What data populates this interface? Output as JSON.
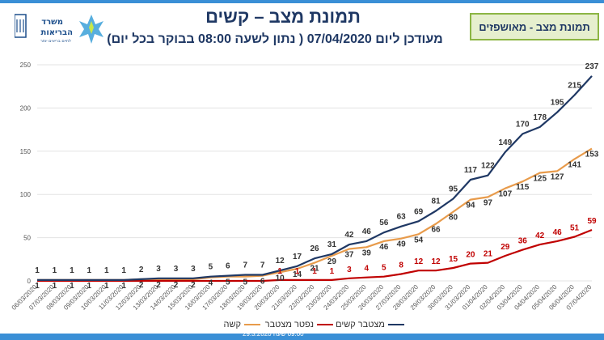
{
  "header": {
    "logo_line1": "משרד",
    "logo_line2": "הבריאות",
    "logo_tagline": "לחיים בריאים יותר",
    "title": "תמונת מצב – קשים",
    "subtitle": "מעודכן ליום 07/04/2020 ( נתון לשעה 08:00 בבוקר בכל יום)",
    "badge": "תמונת מצב - מאושפזים"
  },
  "footer": {
    "text": "09:00 שעה  29.3.2020"
  },
  "colors": {
    "cumulative_severe": "#1f3864",
    "severe": "#e89b4b",
    "cumulative_deceased": "#c00000",
    "accent_green": "#8cb544",
    "accent_blue": "#3a8fd6"
  },
  "chart_data": {
    "type": "line",
    "categories": [
      "06/03/2020",
      "07/03/2020",
      "08/03/2020",
      "09/03/2020",
      "10/03/2020",
      "11/03/2020",
      "12/03/2020",
      "13/03/2020",
      "14/03/2020",
      "15/03/2020",
      "16/03/2020",
      "17/03/2020",
      "18/03/2020",
      "19/03/2020",
      "20/03/2020",
      "21/03/2020",
      "22/03/2020",
      "23/03/2020",
      "24/03/2020",
      "25/03/2020",
      "26/03/2020",
      "27/03/2020",
      "28/03/2020",
      "29/03/2020",
      "30/03/2020",
      "31/03/2020",
      "01/04/2020",
      "02/04/2020",
      "03/04/2020",
      "04/04/2020",
      "05/04/2020",
      "06/04/2020",
      "07/04/2020"
    ],
    "ylim": [
      0,
      250
    ],
    "yticks": [
      0,
      50,
      100,
      150,
      200,
      250
    ],
    "grid": true,
    "legend_position": "bottom",
    "series": [
      {
        "name": "מצטבר קשים",
        "color": "#1f3864",
        "values": [
          1,
          1,
          1,
          1,
          1,
          1,
          2,
          3,
          3,
          3,
          5,
          6,
          7,
          7,
          12,
          17,
          26,
          31,
          42,
          46,
          56,
          63,
          69,
          81,
          95,
          117,
          122,
          149,
          170,
          178,
          195,
          215,
          237
        ],
        "labels": [
          "1",
          "1",
          "1",
          "1",
          "1",
          "1",
          "2",
          "3",
          "3",
          "3",
          "5",
          "6",
          "7",
          "7",
          "12",
          "17",
          "26",
          "31",
          "42",
          "46",
          "56",
          "63",
          "69",
          "81",
          "95",
          "117",
          "122",
          "149",
          "170",
          "178",
          "195",
          "215",
          "237"
        ]
      },
      {
        "name": "קשה",
        "color": "#e89b4b",
        "values": [
          1,
          1,
          1,
          1,
          1,
          1,
          2,
          2,
          2,
          2,
          4,
          5,
          5,
          6,
          10,
          14,
          21,
          29,
          37,
          39,
          46,
          49,
          54,
          66,
          80,
          94,
          97,
          107,
          115,
          125,
          127,
          141,
          153
        ],
        "labels": [
          "1",
          "1",
          "1",
          "1",
          "1",
          "1",
          "2",
          "2",
          "2",
          "2",
          "4",
          "5",
          "5",
          "6",
          "10",
          "14",
          "21",
          "29",
          "37",
          "39",
          "46",
          "49",
          "54",
          "66",
          "80",
          "94",
          "97",
          "107",
          "115",
          "125",
          "127",
          "141",
          "153"
        ]
      },
      {
        "name": "נפטר מצטבר",
        "color": "#c00000",
        "values": [
          0,
          0,
          0,
          0,
          0,
          0,
          0,
          0,
          0,
          0,
          0,
          0,
          0,
          0,
          1,
          1,
          1,
          1,
          3,
          4,
          5,
          8,
          12,
          12,
          15,
          20,
          21,
          29,
          36,
          42,
          46,
          51,
          59
        ],
        "labels": [
          "",
          "",
          "",
          "",
          "",
          "",
          "",
          "",
          "",
          "",
          "",
          "",
          "",
          "",
          "1",
          "1",
          "1",
          "1",
          "3",
          "4",
          "5",
          "8",
          "12",
          "12",
          "15",
          "20",
          "21",
          "29",
          "36",
          "42",
          "46",
          "51",
          "59"
        ]
      }
    ]
  }
}
